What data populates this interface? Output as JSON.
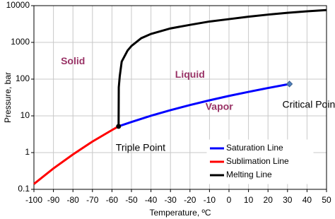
{
  "chart_data": {
    "type": "line",
    "x_label": "Temperature, ºC",
    "y_label": "Pressure, bar",
    "xlim": [
      -100,
      50
    ],
    "xticks": [
      -100,
      -90,
      -80,
      -70,
      -60,
      -50,
      -40,
      -30,
      -20,
      -10,
      0,
      10,
      20,
      30,
      40,
      50
    ],
    "ylim": [
      0.1,
      10000
    ],
    "yticks": [
      0.1,
      1,
      10,
      100,
      1000,
      10000
    ],
    "log_y": true,
    "grid": true,
    "legend": "lower right",
    "series": [
      {
        "name": "Saturation Line",
        "color": "#0000ff",
        "x": [
          -56.6,
          -50,
          -40,
          -30,
          -20,
          -10,
          0,
          10,
          20,
          31
        ],
        "values": [
          5.18,
          6.8,
          10.1,
          14.3,
          19.7,
          26.5,
          34.9,
          45.0,
          57.3,
          73.8
        ]
      },
      {
        "name": "Sublimation Line",
        "color": "#ff0000",
        "x": [
          -100,
          -90,
          -80,
          -70,
          -60,
          -56.6
        ],
        "values": [
          0.14,
          0.37,
          0.89,
          2.0,
          4.1,
          5.18
        ]
      },
      {
        "name": "Melting Line",
        "color": "#000000",
        "x": [
          -56.6,
          -56.5,
          -56,
          -55,
          -52,
          -50,
          -45,
          -40,
          -30,
          -20,
          -10,
          0,
          10,
          20,
          30,
          40,
          50
        ],
        "values": [
          5.18,
          60,
          120,
          300,
          600,
          800,
          1300,
          1700,
          2400,
          3000,
          3700,
          4300,
          5000,
          5700,
          6400,
          7000,
          7600
        ]
      }
    ],
    "points": [
      {
        "name": "Triple Point",
        "x": -56.6,
        "y": 5.18,
        "color": "#000000",
        "shape": "circle"
      },
      {
        "name": "Critical Point",
        "x": 31,
        "y": 73.8,
        "color": "#4f81bd",
        "shape": "diamond"
      }
    ],
    "annotations": [
      {
        "text": "Solid",
        "x": -80,
        "y": 300
      },
      {
        "text": "Liquid",
        "x": -20,
        "y": 130
      },
      {
        "text": "Vapor",
        "x": -5,
        "y": 17
      }
    ],
    "annotation_color": "#993366"
  }
}
